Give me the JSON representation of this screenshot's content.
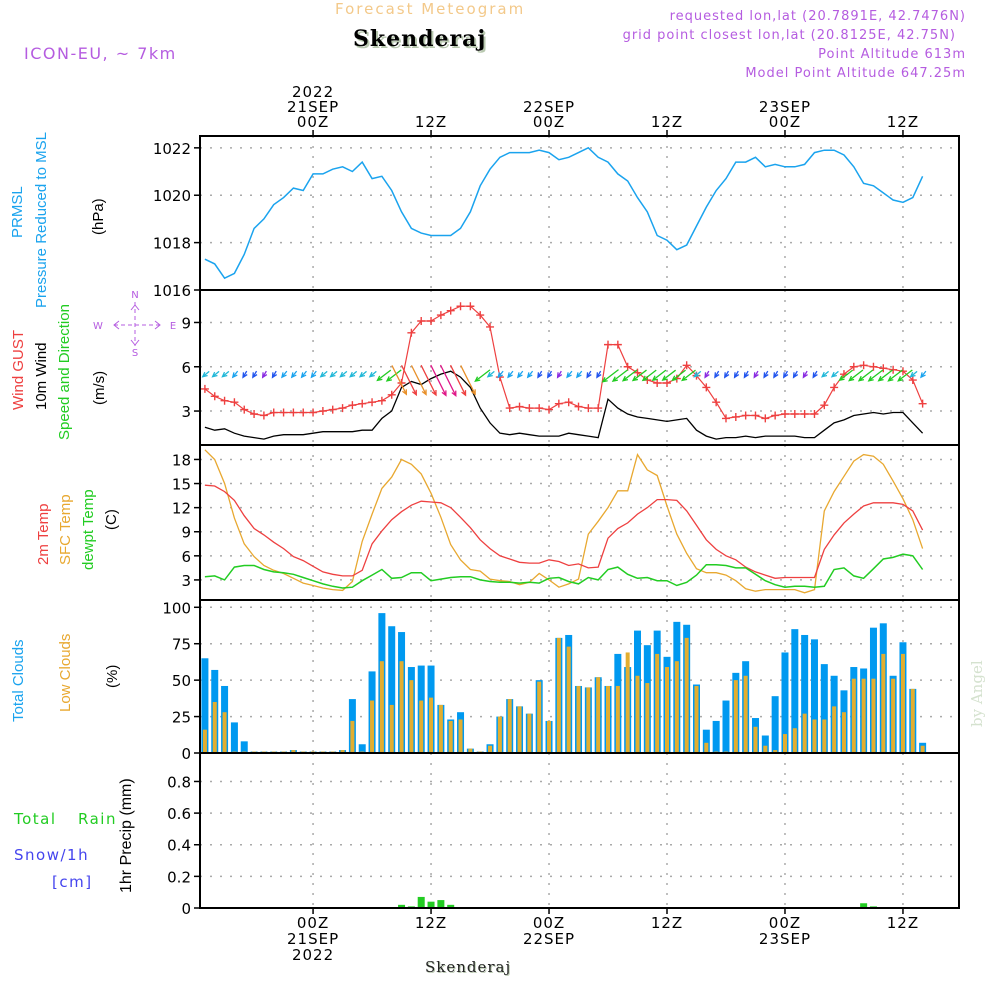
{
  "header": {
    "subtitle": "Forecast Meteogram",
    "location": "Skenderaj",
    "model": "ICON-EU, ~ 7km",
    "requested": "requested lon,lat (20.7891E, 42.7476N)",
    "grid_point": "grid point closest lon,lat (20.8125E, 42.75N)",
    "point_altitude": "Point Altitude 613m",
    "model_altitude": "Model Point Altitude 647.25m"
  },
  "time_axis": {
    "top_labels": [
      {
        "hour": 0,
        "lines": [
          "2022",
          "21SEP",
          "00Z"
        ]
      },
      {
        "hour": 12,
        "lines": [
          "12Z"
        ]
      },
      {
        "hour": 24,
        "lines": [
          "22SEP",
          "00Z"
        ]
      },
      {
        "hour": 36,
        "lines": [
          "12Z"
        ]
      },
      {
        "hour": 48,
        "lines": [
          "23SEP",
          "00Z"
        ]
      },
      {
        "hour": 60,
        "lines": [
          "12Z"
        ]
      }
    ],
    "bottom_labels": [
      {
        "hour": 0,
        "lines": [
          "00Z",
          "21SEP",
          "2022"
        ]
      },
      {
        "hour": 12,
        "lines": [
          "12Z"
        ]
      },
      {
        "hour": 24,
        "lines": [
          "00Z",
          "22SEP"
        ]
      },
      {
        "hour": 36,
        "lines": [
          "12Z"
        ]
      },
      {
        "hour": 48,
        "lines": [
          "00Z",
          "23SEP"
        ]
      },
      {
        "hour": 60,
        "lines": [
          "12Z"
        ]
      }
    ],
    "range_hours": [
      -11.5,
      65.7
    ],
    "footer_location": "Skenderaj"
  },
  "labels": {
    "pressure": {
      "l1": "PRMSL",
      "l2": "Pressure Reduced to MSL",
      "unit": "(hPa)"
    },
    "wind": {
      "gust": "Wind GUST",
      "w10": "10m Wind",
      "sd": "Speed and Direction",
      "unit": "(m/s)",
      "compass": {
        "n": "N",
        "s": "S",
        "e": "E",
        "w": "W"
      }
    },
    "temp": {
      "t2m": "2m Temp",
      "sfc": "SFC Temp",
      "dew": "dewpt Temp",
      "unit": "(C)"
    },
    "clouds": {
      "total": "Total Clouds",
      "low": "Low Clouds",
      "unit": "(%)"
    },
    "precip": {
      "rain_a": "Total",
      "rain_b": "Rain",
      "snow": "Snow/1h",
      "snow_unit": "[cm]",
      "axis": "1hr Precip (mm)"
    },
    "watermark": "by Angel"
  },
  "colors": {
    "pressure": "#1aa3ee",
    "gust": "#ee4040",
    "wind10": "#000000",
    "t2m": "#ee4040",
    "sfc": "#e8a830",
    "dew": "#22cc22",
    "total_cloud": "#0099f0",
    "low_cloud": "#e2ae30",
    "rain": "#22cc22",
    "snow": "#4444ee",
    "label_purple": "#b55ce0"
  },
  "chart_data": [
    {
      "type": "line",
      "title": "PRMSL Pressure Reduced to MSL",
      "ylabel": "(hPa)",
      "ylim": [
        1016,
        1022.5
      ],
      "yticks": [
        1016,
        1018,
        1020,
        1022
      ],
      "x_start_hour": -11,
      "series": [
        {
          "name": "PRMSL",
          "values": [
            1017.3,
            1017.1,
            1016.5,
            1016.7,
            1017.5,
            1018.6,
            1019.0,
            1019.6,
            1019.9,
            1020.3,
            1020.2,
            1020.9,
            1020.9,
            1021.1,
            1021.2,
            1021.0,
            1021.4,
            1020.7,
            1020.8,
            1020.2,
            1019.3,
            1018.6,
            1018.4,
            1018.3,
            1018.3,
            1018.3,
            1018.6,
            1019.3,
            1020.4,
            1021.1,
            1021.6,
            1021.8,
            1021.8,
            1021.8,
            1021.9,
            1021.8,
            1021.5,
            1021.6,
            1021.8,
            1022.0,
            1021.6,
            1021.4,
            1020.9,
            1020.6,
            1019.9,
            1019.3,
            1018.3,
            1018.1,
            1017.7,
            1017.9,
            1018.7,
            1019.5,
            1020.2,
            1020.7,
            1021.4,
            1021.4,
            1021.6,
            1021.2,
            1021.3,
            1021.2,
            1021.2,
            1021.3,
            1021.8,
            1021.9,
            1021.9,
            1021.7,
            1021.2,
            1020.5,
            1020.4,
            1020.1,
            1019.8,
            1019.7,
            1019.9,
            1020.8
          ]
        }
      ]
    },
    {
      "type": "line",
      "title": "Wind GUST / 10m Wind Speed and Direction",
      "ylabel": "(m/s)",
      "ylim": [
        0.7,
        11.2
      ],
      "yticks": [
        3,
        6,
        9
      ],
      "x_start_hour": -11,
      "series": [
        {
          "name": "Wind GUST",
          "values": [
            4.5,
            4.0,
            3.7,
            3.6,
            3.1,
            2.8,
            2.7,
            2.9,
            2.9,
            2.9,
            2.9,
            2.9,
            3.0,
            3.1,
            3.2,
            3.4,
            3.5,
            3.6,
            3.7,
            4.1,
            4.9,
            8.3,
            9.1,
            9.1,
            9.5,
            9.8,
            10.1,
            10.1,
            9.5,
            8.7,
            5.3,
            3.2,
            3.3,
            3.2,
            3.2,
            3.1,
            3.5,
            3.6,
            3.3,
            3.2,
            3.2,
            7.5,
            7.5,
            6.0,
            5.6,
            5.1,
            4.9,
            4.9,
            5.2,
            6.1,
            5.4,
            4.6,
            3.6,
            2.5,
            2.6,
            2.7,
            2.7,
            2.5,
            2.7,
            2.8,
            2.8,
            2.8,
            2.8,
            3.4,
            4.6,
            5.5,
            6.0,
            6.1,
            6.0,
            5.9,
            5.8,
            5.7,
            5.1,
            3.5
          ]
        },
        {
          "name": "10m Wind",
          "values": [
            1.9,
            1.7,
            1.8,
            1.5,
            1.3,
            1.2,
            1.1,
            1.3,
            1.4,
            1.4,
            1.4,
            1.5,
            1.6,
            1.6,
            1.6,
            1.6,
            1.7,
            1.7,
            2.5,
            3.0,
            4.6,
            5.0,
            4.8,
            5.2,
            5.5,
            5.7,
            5.3,
            4.6,
            3.2,
            2.2,
            1.5,
            1.4,
            1.5,
            1.4,
            1.3,
            1.3,
            1.3,
            1.5,
            1.4,
            1.3,
            1.2,
            3.8,
            3.2,
            2.8,
            2.6,
            2.5,
            2.4,
            2.3,
            2.4,
            2.5,
            1.7,
            1.3,
            1.1,
            1.2,
            1.2,
            1.3,
            1.2,
            1.3,
            1.3,
            1.3,
            1.3,
            1.2,
            1.2,
            1.7,
            2.2,
            2.4,
            2.7,
            2.8,
            2.9,
            2.8,
            2.9,
            2.9,
            2.2,
            1.5
          ]
        }
      ],
      "wind_direction_arrows": "spanning row near 5.5 m/s; blue/cyan SW-pointing arrows overnight, orange/red/magenta S-pointing arrows near 21SEP 12Z, green SW arrows 22SEP midday and 23SEP morning"
    },
    {
      "type": "line",
      "title": "2m Temp / SFC Temp / dewpt Temp",
      "ylabel": "(C)",
      "ylim": [
        0.5,
        19.8
      ],
      "yticks": [
        3,
        6,
        9,
        12,
        15,
        18
      ],
      "x_start_hour": -11,
      "series": [
        {
          "name": "2m Temp",
          "values": [
            14.8,
            14.7,
            14.0,
            12.9,
            11.0,
            9.4,
            8.6,
            7.7,
            6.9,
            5.9,
            5.4,
            4.7,
            4.0,
            3.7,
            3.5,
            3.5,
            4.2,
            7.5,
            9.1,
            10.5,
            11.5,
            12.3,
            12.8,
            12.7,
            12.6,
            12.0,
            10.8,
            9.5,
            8.0,
            6.9,
            6.0,
            5.6,
            5.2,
            5.1,
            5.1,
            5.5,
            5.3,
            4.8,
            5.0,
            4.5,
            4.6,
            8.2,
            9.4,
            10.1,
            11.2,
            12.0,
            13.0,
            13.0,
            12.9,
            11.6,
            9.8,
            8.0,
            6.8,
            6.0,
            5.5,
            4.6,
            4.0,
            3.6,
            3.2,
            3.3,
            3.3,
            3.3,
            3.3,
            6.8,
            8.6,
            10.1,
            11.2,
            12.2,
            12.6,
            12.6,
            12.6,
            12.4,
            11.6,
            9.2
          ]
        },
        {
          "name": "SFC Temp",
          "values": [
            19.2,
            18.0,
            15.0,
            10.7,
            7.5,
            5.9,
            4.8,
            4.2,
            3.8,
            3.2,
            2.6,
            2.3,
            2.0,
            1.8,
            1.7,
            2.8,
            7.8,
            11.2,
            14.4,
            15.8,
            18.0,
            17.4,
            16.2,
            13.8,
            10.8,
            7.4,
            5.5,
            4.3,
            4.1,
            3.1,
            2.9,
            2.8,
            2.4,
            2.7,
            3.8,
            3.0,
            2.1,
            2.5,
            3.1,
            8.7,
            10.3,
            12.0,
            14.1,
            14.1,
            18.6,
            16.7,
            16.0,
            12.2,
            8.7,
            6.3,
            4.4,
            3.9,
            3.9,
            3.6,
            2.9,
            1.9,
            1.6,
            1.8,
            1.8,
            1.8,
            1.8,
            1.4,
            1.8,
            11.6,
            14.0,
            15.9,
            17.8,
            18.6,
            18.4,
            17.4,
            15.3,
            13.1,
            10.5,
            6.9
          ]
        },
        {
          "name": "dewpt Temp",
          "values": [
            3.4,
            3.5,
            3.0,
            4.6,
            4.8,
            4.8,
            4.3,
            4.0,
            3.9,
            3.7,
            3.3,
            2.9,
            2.5,
            2.2,
            2.0,
            2.1,
            2.9,
            3.6,
            4.3,
            3.2,
            3.3,
            3.9,
            3.9,
            2.9,
            3.1,
            3.3,
            3.4,
            3.4,
            3.0,
            2.8,
            2.7,
            2.7,
            2.6,
            2.7,
            2.6,
            3.2,
            3.3,
            2.8,
            2.5,
            3.3,
            3.0,
            4.3,
            4.6,
            3.7,
            3.2,
            3.3,
            2.9,
            2.9,
            2.3,
            2.7,
            3.6,
            4.9,
            4.9,
            4.8,
            4.5,
            4.5,
            3.7,
            2.9,
            2.4,
            2.1,
            2.2,
            2.2,
            2.1,
            2.2,
            4.3,
            4.5,
            3.5,
            3.2,
            4.4,
            5.6,
            5.8,
            6.2,
            6.0,
            4.3
          ]
        }
      ]
    },
    {
      "type": "bar",
      "title": "Total Clouds / Low Clouds",
      "ylabel": "(%)",
      "ylim": [
        0,
        105
      ],
      "yticks": [
        0,
        25,
        50,
        75,
        100
      ],
      "x_start_hour": -11,
      "series": [
        {
          "name": "Total Clouds",
          "values": [
            65,
            57,
            46,
            21,
            8,
            1,
            1,
            1,
            1,
            2,
            1,
            1,
            1,
            1,
            2,
            37,
            6,
            56,
            96,
            87,
            83,
            59,
            60,
            60,
            33,
            23,
            28,
            3,
            1,
            6,
            25,
            37,
            32,
            27,
            50,
            22,
            79,
            81,
            46,
            45,
            52,
            46,
            68,
            59,
            84,
            74,
            84,
            66,
            90,
            88,
            47,
            16,
            22,
            36,
            55,
            63,
            24,
            12,
            39,
            69,
            85,
            81,
            78,
            61,
            53,
            43,
            59,
            58,
            86,
            89,
            53,
            76,
            44,
            7
          ]
        },
        {
          "name": "Low Clouds",
          "values": [
            16,
            35,
            28,
            1,
            1,
            1,
            1,
            1,
            1,
            2,
            1,
            1,
            1,
            1,
            2,
            22,
            1,
            36,
            63,
            33,
            63,
            50,
            36,
            38,
            33,
            22,
            23,
            3,
            1,
            5,
            25,
            37,
            32,
            27,
            49,
            22,
            79,
            73,
            46,
            45,
            52,
            46,
            46,
            69,
            53,
            48,
            68,
            59,
            63,
            79,
            46,
            7,
            1,
            1,
            50,
            53,
            18,
            5,
            2,
            13,
            17,
            27,
            23,
            23,
            32,
            28,
            51,
            51,
            51,
            68,
            51,
            68,
            44,
            5
          ]
        }
      ]
    },
    {
      "type": "bar",
      "title": "Total Rain / Snow per 1h",
      "ylabel": "1hr Precip (mm)",
      "ylim": [
        0,
        0.98
      ],
      "yticks": [
        0,
        0.2,
        0.4,
        0.6,
        0.8
      ],
      "x_start_hour": -11,
      "series": [
        {
          "name": "Total Rain",
          "values": [
            0,
            0,
            0,
            0,
            0,
            0,
            0,
            0,
            0,
            0,
            0,
            0,
            0,
            0,
            0,
            0,
            0,
            0,
            0,
            0,
            0.02,
            0.01,
            0.07,
            0.04,
            0.05,
            0.02,
            0,
            0,
            0,
            0,
            0,
            0,
            0,
            0,
            0,
            0,
            0,
            0,
            0,
            0,
            0,
            0,
            0,
            0,
            0,
            0,
            0,
            0,
            0,
            0,
            0,
            0,
            0,
            0,
            0,
            0,
            0,
            0,
            0,
            0,
            0,
            0,
            0,
            0,
            0,
            0,
            0,
            0.03,
            0.01,
            0,
            0,
            0,
            0,
            0
          ]
        },
        {
          "name": "Snow/1h",
          "values": []
        }
      ]
    }
  ]
}
